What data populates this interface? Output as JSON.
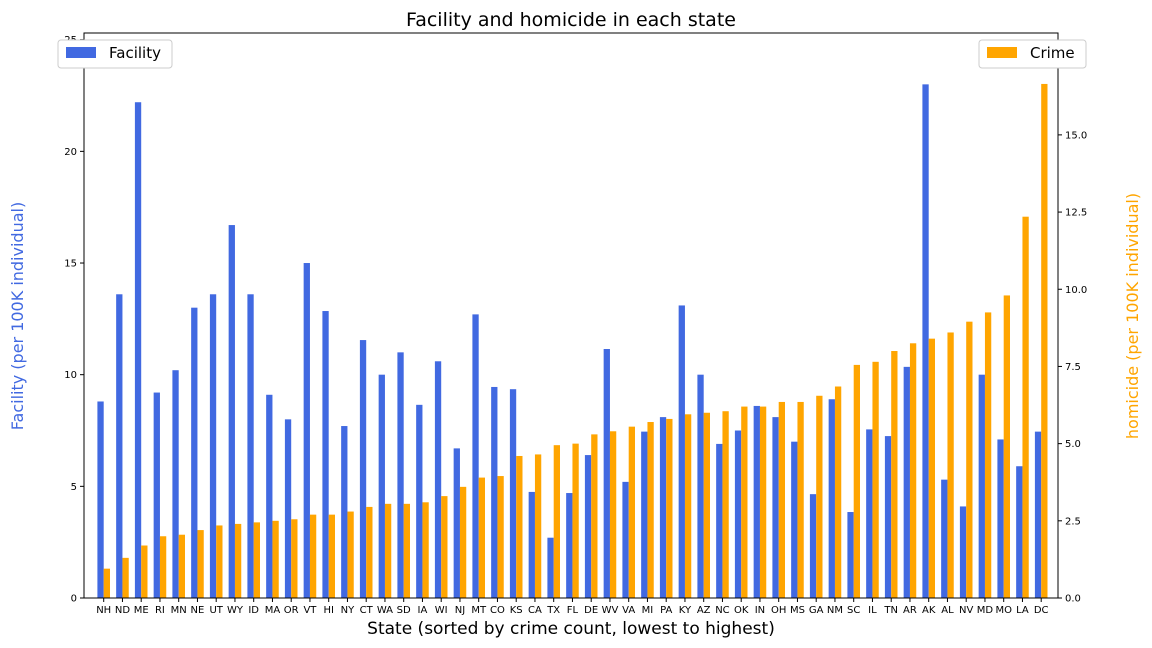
{
  "chart_data": {
    "type": "bar",
    "title": "Facility and homicide in each state",
    "xlabel": "State (sorted by crime count, lowest to highest)",
    "ylabel_left": "Facility (per 100K individual)",
    "ylabel_right": "homicide (per 100K individual)",
    "categories": [
      "NH",
      "ND",
      "ME",
      "RI",
      "MN",
      "NE",
      "UT",
      "WY",
      "ID",
      "MA",
      "OR",
      "VT",
      "HI",
      "NY",
      "CT",
      "WA",
      "SD",
      "IA",
      "WI",
      "NJ",
      "MT",
      "CO",
      "KS",
      "CA",
      "TX",
      "FL",
      "DE",
      "WV",
      "VA",
      "MI",
      "PA",
      "KY",
      "AZ",
      "NC",
      "OK",
      "IN",
      "OH",
      "MS",
      "GA",
      "NM",
      "SC",
      "IL",
      "TN",
      "AR",
      "AK",
      "AL",
      "NV",
      "MD",
      "MO",
      "LA",
      "DC"
    ],
    "series": [
      {
        "name": "Facility",
        "axis": "left",
        "color": "#4169e1",
        "values": [
          8.8,
          13.6,
          22.2,
          9.2,
          10.2,
          13.0,
          13.6,
          16.7,
          13.6,
          9.1,
          8.0,
          15.0,
          12.85,
          7.7,
          11.55,
          10.0,
          11.0,
          8.65,
          10.6,
          6.7,
          12.7,
          9.45,
          9.35,
          4.75,
          2.7,
          4.7,
          6.4,
          11.15,
          5.2,
          7.45,
          8.1,
          13.1,
          10.0,
          6.9,
          7.5,
          8.6,
          8.1,
          7.0,
          4.65,
          8.9,
          3.85,
          7.55,
          7.25,
          10.35,
          23.0,
          5.3,
          4.1,
          10.0,
          7.1,
          5.9,
          7.45
        ]
      },
      {
        "name": "Crime",
        "axis": "right",
        "color": "#ffa500",
        "values": [
          0.95,
          1.3,
          1.7,
          2.0,
          2.05,
          2.2,
          2.35,
          2.4,
          2.45,
          2.5,
          2.55,
          2.7,
          2.7,
          2.8,
          2.95,
          3.05,
          3.05,
          3.1,
          3.3,
          3.6,
          3.9,
          3.95,
          4.6,
          4.65,
          4.95,
          5.0,
          5.3,
          5.4,
          5.55,
          5.7,
          5.8,
          5.95,
          6.0,
          6.05,
          6.2,
          6.2,
          6.35,
          6.35,
          6.55,
          6.85,
          7.55,
          7.65,
          8.0,
          8.25,
          8.4,
          8.6,
          8.95,
          9.25,
          9.8,
          12.35,
          16.65
        ]
      }
    ],
    "ylim_left": [
      0,
      25.3
    ],
    "ylim_right": [
      0,
      18.3
    ],
    "yticks_left": [
      "0",
      "5",
      "10",
      "15",
      "20",
      "25"
    ],
    "yticks_right": [
      "0.0",
      "2.5",
      "5.0",
      "7.5",
      "10.0",
      "12.5",
      "15.0",
      "17.5"
    ],
    "legend_left": {
      "label": "Facility",
      "placement": "top-left"
    },
    "legend_right": {
      "label": "Crime",
      "placement": "top-right"
    },
    "grid": false
  }
}
